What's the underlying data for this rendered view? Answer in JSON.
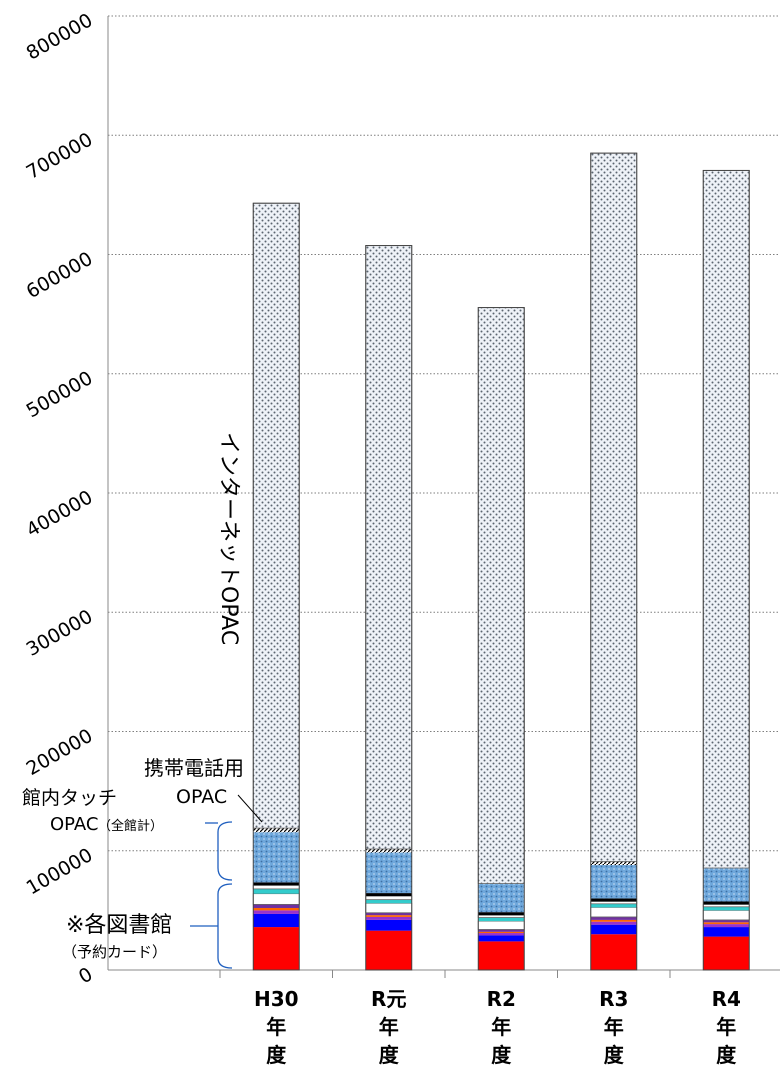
{
  "chart_data": {
    "type": "bar",
    "stacked": true,
    "categories": [
      "H30年度",
      "R元年度",
      "R2年度",
      "R3年度",
      "R4年度"
    ],
    "category_label_lines": [
      [
        "H30",
        "年",
        "度"
      ],
      [
        "R元",
        "年",
        "度"
      ],
      [
        "R2",
        "年",
        "度"
      ],
      [
        "R3",
        "年",
        "度"
      ],
      [
        "R4",
        "年",
        "度"
      ]
    ],
    "ylim": [
      0,
      800000
    ],
    "yticks": [
      0,
      100000,
      200000,
      300000,
      400000,
      500000,
      600000,
      700000,
      800000
    ],
    "ytick_labels": [
      "0",
      "100000",
      "200000",
      "300000",
      "400000",
      "500000",
      "600000",
      "700000",
      "800000"
    ],
    "grid": "horizontal-dotted",
    "series": [
      {
        "color": "#ff0000",
        "values": [
          36000,
          33000,
          24000,
          30000,
          28000
        ]
      },
      {
        "color": "#0000ff",
        "values": [
          11000,
          9000,
          5000,
          8000,
          8000
        ]
      },
      {
        "color": "#9933cc",
        "values": [
          3000,
          2500,
          2000,
          2500,
          2500
        ]
      },
      {
        "color": "#ff6600",
        "values": [
          2000,
          1500,
          1000,
          1500,
          1500
        ]
      },
      {
        "color": "#7030a0",
        "values": [
          3000,
          2000,
          2000,
          2500,
          2000
        ]
      },
      {
        "color": "#ffffff",
        "values": [
          9000,
          8000,
          7000,
          8000,
          8000
        ]
      },
      {
        "color": "#33cccc",
        "values": [
          4000,
          3000,
          3000,
          3000,
          3000
        ]
      },
      {
        "color": "#ffffff",
        "values": [
          3000,
          3000,
          2000,
          2000,
          2000
        ]
      },
      {
        "color": "#000000",
        "values": [
          2500,
          2500,
          2500,
          2500,
          2500
        ]
      },
      {
        "color": "#6fa8dc",
        "values": [
          42000,
          34000,
          24000,
          28000,
          28000
        ]
      },
      {
        "color": "#555555",
        "values": [
          3500,
          3000,
          0,
          3000,
          0
        ]
      },
      {
        "color": "#e8eef5",
        "values": [
          524000,
          506000,
          483000,
          594000,
          585000
        ]
      }
    ],
    "series_labels": {
      "internet_opac": "インターネットOPAC",
      "mobile_opac_line1": "携帯電話用",
      "mobile_opac_line2": "OPAC",
      "touch_opac_line1": "館内タッチ",
      "touch_opac_line2_main": "OPAC",
      "touch_opac_line2_sub": "（全館計）",
      "each_library_line1": "※各図書館",
      "each_library_line2": "（予約カード）"
    }
  }
}
